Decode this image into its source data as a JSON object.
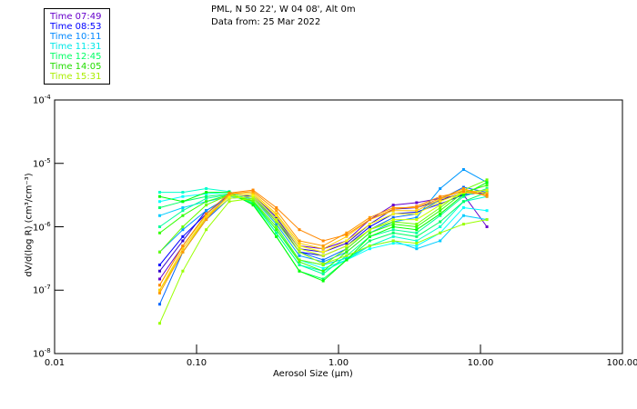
{
  "chart_data": {
    "type": "line",
    "title": "PML, N 50 22', W 04 08', Alt 0m",
    "subtitle": "Data from: 25 Mar 2022",
    "xlabel": "Aerosol Size (μm)",
    "ylabel": "dV/d(log R) (cm³/cm⁻³)",
    "xscale": "log",
    "yscale": "log",
    "xlim": [
      0.01,
      100
    ],
    "ylim": [
      1e-08,
      0.0001
    ],
    "xticks": [
      "0.01",
      "0.10",
      "1.00",
      "10.00",
      "100.00"
    ],
    "yticks": [
      {
        "base": "10",
        "exp": "-4"
      },
      {
        "base": "10",
        "exp": "-5"
      },
      {
        "base": "10",
        "exp": "-6"
      },
      {
        "base": "10",
        "exp": "-7"
      },
      {
        "base": "10",
        "exp": "-8"
      }
    ],
    "legend": {
      "placement": "top-left",
      "entries": [
        {
          "label": "Time 07:49",
          "color": "#6600cc"
        },
        {
          "label": "Time 08:53",
          "color": "#0000ff"
        },
        {
          "label": "Time 10:11",
          "color": "#0088ff"
        },
        {
          "label": "Time 11:31",
          "color": "#00e8e8"
        },
        {
          "label": "Time 12:45",
          "color": "#00ff66"
        },
        {
          "label": "Time 14:05",
          "color": "#22dd00"
        },
        {
          "label": "Time 15:31",
          "color": "#aaee00"
        }
      ]
    },
    "x": [
      0.055,
      0.08,
      0.117,
      0.17,
      0.25,
      0.365,
      0.53,
      0.78,
      1.14,
      1.66,
      2.43,
      3.55,
      5.2,
      7.6,
      11.1
    ],
    "series": [
      {
        "color": "#6600cc",
        "values": [
          1.5e-07,
          5e-07,
          1.5e-06,
          3e-06,
          3.2e-06,
          1.5e-06,
          5e-07,
          4.5e-07,
          6e-07,
          1.3e-06,
          2.2e-06,
          2.4e-06,
          2.8e-06,
          3.2e-06,
          1e-06
        ]
      },
      {
        "color": "#3300cc",
        "values": [
          2e-07,
          6e-07,
          1.8e-06,
          3e-06,
          3.2e-06,
          1.4e-06,
          4.5e-07,
          4e-07,
          5.5e-07,
          1.1e-06,
          1.9e-06,
          2e-06,
          2.6e-06,
          3.5e-06,
          3.8e-06
        ]
      },
      {
        "color": "#0000ff",
        "values": [
          2.5e-07,
          7e-07,
          1.6e-06,
          3.2e-06,
          3e-06,
          1.3e-06,
          4e-07,
          3.5e-07,
          5e-07,
          1e-06,
          1.6e-06,
          1.7e-06,
          2.3e-06,
          3.2e-06,
          3.5e-06
        ]
      },
      {
        "color": "#0066ff",
        "values": [
          6e-08,
          4e-07,
          1.3e-06,
          2.8e-06,
          3e-06,
          1.2e-06,
          4e-07,
          3e-07,
          4.5e-07,
          9e-07,
          1.4e-06,
          1.6e-06,
          2.7e-06,
          4.2e-06,
          3.5e-06
        ]
      },
      {
        "color": "#0099ff",
        "values": [
          4e-07,
          9e-07,
          1.8e-06,
          3e-06,
          2.8e-06,
          1.1e-06,
          3.5e-07,
          2.8e-07,
          4e-07,
          8e-07,
          1.2e-06,
          1.4e-06,
          4e-06,
          8e-06,
          5e-06
        ]
      },
      {
        "color": "#00ccff",
        "values": [
          1.5e-06,
          2e-06,
          2.5e-06,
          3e-06,
          2.6e-06,
          1e-06,
          3e-07,
          2.5e-07,
          3.2e-07,
          5e-07,
          6e-07,
          4.5e-07,
          6e-07,
          1.5e-06,
          1.3e-06
        ]
      },
      {
        "color": "#00ffff",
        "values": [
          2.5e-06,
          3e-06,
          3.3e-06,
          3.5e-06,
          2.5e-06,
          9e-07,
          3e-07,
          2.2e-07,
          3e-07,
          4.5e-07,
          5.5e-07,
          5e-07,
          8e-07,
          2e-06,
          1.8e-06
        ]
      },
      {
        "color": "#00ffcc",
        "values": [
          3.5e-06,
          3.5e-06,
          4e-06,
          3.6e-06,
          2.5e-06,
          8e-07,
          2.5e-07,
          2e-07,
          3e-07,
          5e-07,
          7e-07,
          6e-07,
          1e-06,
          2.5e-06,
          3e-06
        ]
      },
      {
        "color": "#00ff99",
        "values": [
          1e-06,
          1.8e-06,
          2.8e-06,
          3.2e-06,
          2.4e-06,
          8e-07,
          2.5e-07,
          1.8e-07,
          3.5e-07,
          7e-07,
          9e-07,
          8e-07,
          1.5e-06,
          3e-06,
          4e-06
        ]
      },
      {
        "color": "#00ff66",
        "values": [
          2e-06,
          2.5e-06,
          3e-06,
          3.3e-06,
          2.3e-06,
          7e-07,
          2e-07,
          1.5e-07,
          3e-07,
          6e-07,
          8e-07,
          7e-07,
          1.2e-06,
          2.5e-06,
          3.5e-06
        ]
      },
      {
        "color": "#00ff00",
        "values": [
          3e-06,
          2.5e-06,
          3.5e-06,
          3.5e-06,
          2.2e-06,
          7e-07,
          2e-07,
          1.4e-07,
          3e-07,
          7e-07,
          1e-06,
          9e-07,
          1.6e-06,
          3.2e-06,
          5e-06
        ]
      },
      {
        "color": "#33ff00",
        "values": [
          8e-07,
          1.5e-06,
          2.5e-06,
          3.2e-06,
          2.5e-06,
          9e-07,
          2.8e-07,
          2e-07,
          4e-07,
          8e-07,
          1.1e-06,
          1e-06,
          1.8e-06,
          3.5e-06,
          4.5e-06
        ]
      },
      {
        "color": "#66ff00",
        "values": [
          4e-07,
          1e-06,
          2.2e-06,
          3.2e-06,
          2.6e-06,
          1e-06,
          3e-07,
          2.5e-07,
          4.5e-07,
          9e-07,
          1.2e-06,
          1.1e-06,
          2e-06,
          3.8e-06,
          5.5e-06
        ]
      },
      {
        "color": "#99ff00",
        "values": [
          3e-08,
          2e-07,
          9e-07,
          2.5e-06,
          2.8e-06,
          1.2e-06,
          4e-07,
          2.6e-07,
          3.5e-07,
          5e-07,
          6e-07,
          5.5e-07,
          8e-07,
          1.1e-06,
          1.3e-06
        ]
      },
      {
        "color": "#ccff00",
        "values": [
          1e-07,
          4e-07,
          1.4e-06,
          2.8e-06,
          3e-06,
          1.3e-06,
          4.5e-07,
          3.5e-07,
          5e-07,
          9e-07,
          1.3e-06,
          1.3e-06,
          2.2e-06,
          3.5e-06,
          3.8e-06
        ]
      },
      {
        "color": "#ffff00",
        "values": [
          1.2e-07,
          5e-07,
          1.5e-06,
          3e-06,
          3.2e-06,
          1.5e-06,
          5e-07,
          4e-07,
          6e-07,
          1.1e-06,
          1.6e-06,
          1.6e-06,
          2.5e-06,
          3.5e-06,
          3.2e-06
        ]
      },
      {
        "color": "#ffcc00",
        "values": [
          1e-07,
          4.5e-07,
          1.4e-06,
          3.2e-06,
          3.4e-06,
          1.6e-06,
          5.5e-07,
          4.5e-07,
          7e-07,
          1.3e-06,
          1.8e-06,
          1.8e-06,
          2.7e-06,
          3.8e-06,
          3.4e-06
        ]
      },
      {
        "color": "#ff9900",
        "values": [
          9e-08,
          4e-07,
          1.3e-06,
          3.3e-06,
          3.6e-06,
          1.8e-06,
          6e-07,
          5e-07,
          8e-07,
          1.4e-06,
          2e-06,
          2e-06,
          2.8e-06,
          4e-06,
          3e-06
        ]
      },
      {
        "color": "#ff8800",
        "values": [
          1.2e-07,
          5e-07,
          1.6e-06,
          3.4e-06,
          3.8e-06,
          2e-06,
          9e-07,
          6e-07,
          7.5e-07,
          1.3e-06,
          1.9e-06,
          2.1e-06,
          3e-06,
          3.6e-06,
          3.2e-06
        ]
      }
    ]
  }
}
